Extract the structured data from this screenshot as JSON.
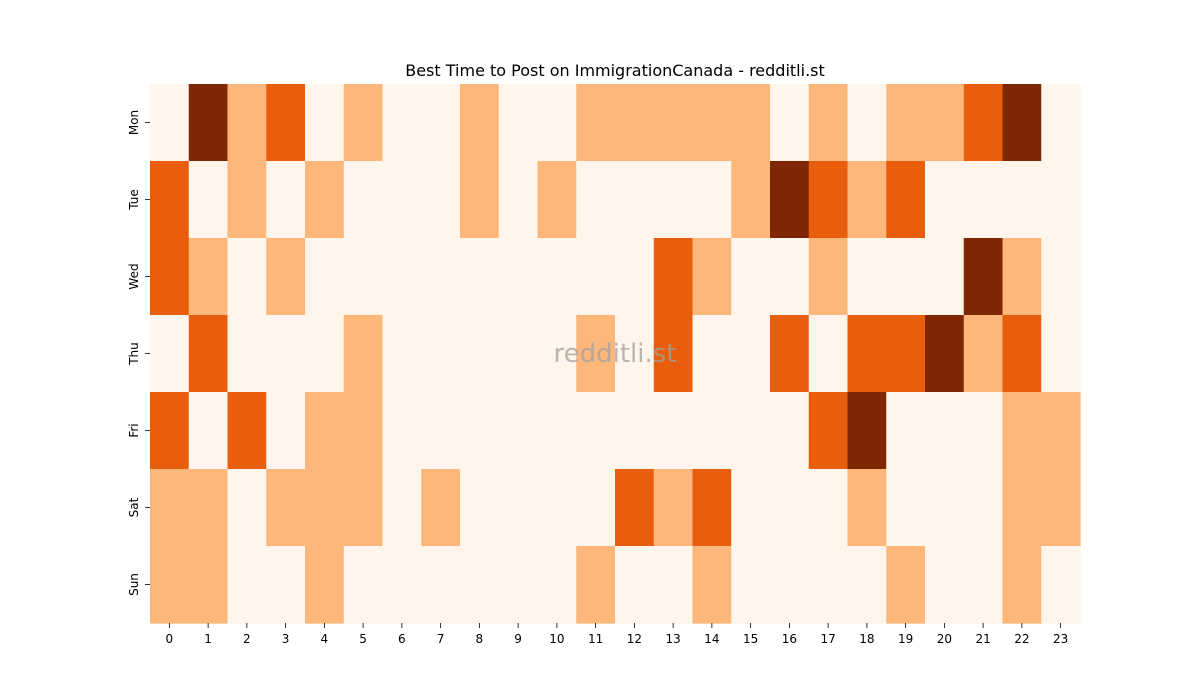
{
  "chart_data": {
    "type": "heatmap",
    "title": "Best Time to Post on ImmigrationCanada - redditli.st",
    "watermark": "redditli.st",
    "x_categories": [
      "0",
      "1",
      "2",
      "3",
      "4",
      "5",
      "6",
      "7",
      "8",
      "9",
      "10",
      "11",
      "12",
      "13",
      "14",
      "15",
      "16",
      "17",
      "18",
      "19",
      "20",
      "21",
      "22",
      "23"
    ],
    "y_categories": [
      "Mon",
      "Tue",
      "Wed",
      "Thu",
      "Fri",
      "Sat",
      "Sun"
    ],
    "values": [
      [
        0,
        3,
        1,
        2,
        0,
        1,
        0,
        0,
        1,
        0,
        0,
        1,
        1,
        1,
        1,
        1,
        0,
        1,
        0,
        1,
        1,
        2,
        3,
        0
      ],
      [
        2,
        0,
        1,
        0,
        1,
        0,
        0,
        0,
        1,
        0,
        1,
        0,
        0,
        0,
        0,
        1,
        3,
        2,
        1,
        2,
        0,
        0,
        0,
        0
      ],
      [
        2,
        1,
        0,
        1,
        0,
        0,
        0,
        0,
        0,
        0,
        0,
        0,
        0,
        2,
        1,
        0,
        0,
        1,
        0,
        0,
        0,
        3,
        1,
        0
      ],
      [
        0,
        2,
        0,
        0,
        0,
        1,
        0,
        0,
        0,
        0,
        0,
        1,
        0,
        2,
        0,
        0,
        2,
        0,
        2,
        2,
        3,
        1,
        2,
        0
      ],
      [
        2,
        0,
        2,
        0,
        1,
        1,
        0,
        0,
        0,
        0,
        0,
        0,
        0,
        0,
        0,
        0,
        0,
        2,
        3,
        0,
        0,
        0,
        1,
        1
      ],
      [
        1,
        1,
        0,
        1,
        1,
        1,
        0,
        1,
        0,
        0,
        0,
        0,
        2,
        1,
        2,
        0,
        0,
        0,
        1,
        0,
        0,
        0,
        1,
        1
      ],
      [
        1,
        1,
        0,
        0,
        1,
        0,
        0,
        0,
        0,
        0,
        0,
        1,
        0,
        0,
        1,
        0,
        0,
        0,
        0,
        1,
        0,
        0,
        1,
        0
      ]
    ],
    "colorscale": [
      "#fff5eb",
      "#fdb77a",
      "#e95e0d",
      "#7f2704"
    ],
    "colorbar": false
  }
}
